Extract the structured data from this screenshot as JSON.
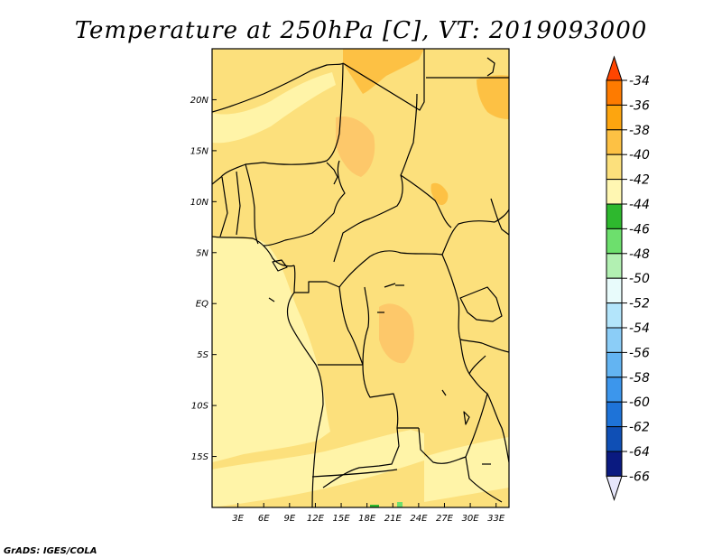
{
  "chart_data": {
    "type": "heatmap",
    "title": "Temperature at 250hPa [C], VT: 2019093000",
    "xlabel": "",
    "ylabel": "",
    "xlim": [
      0,
      34.5
    ],
    "ylim": [
      -20,
      25
    ],
    "x_ticks": [
      "3E",
      "6E",
      "9E",
      "12E",
      "15E",
      "18E",
      "21E",
      "24E",
      "27E",
      "30E",
      "33E"
    ],
    "x_tick_values": [
      3,
      6,
      9,
      12,
      15,
      18,
      21,
      24,
      27,
      30,
      33
    ],
    "y_ticks": [
      "20N",
      "15N",
      "10N",
      "5N",
      "EQ",
      "5S",
      "10S",
      "15S"
    ],
    "y_tick_values": [
      20,
      15,
      10,
      5,
      0,
      -5,
      -10,
      -15
    ],
    "colorbar": {
      "labels": [
        "-34",
        "-36",
        "-38",
        "-40",
        "-42",
        "-44",
        "-46",
        "-48",
        "-50",
        "-52",
        "-54",
        "-56",
        "-58",
        "-60",
        "-62",
        "-64",
        "-66"
      ],
      "colors": [
        "#ff4500",
        "#fe7b00",
        "#fda50f",
        "#fdc144",
        "#fce07c",
        "#fff7b2",
        "#2eb82e",
        "#6ddf6d",
        "#b2f0b2",
        "#e8fbfb",
        "#b3e5fb",
        "#8bcdf7",
        "#63b4f2",
        "#3c96ec",
        "#1e73d8",
        "#0f4fb5",
        "#0a1a80",
        "#e6e6fa"
      ]
    },
    "regions": [
      {
        "level": "-42 to -40",
        "description": "broad band over Sahel, Congo basin and East Africa"
      },
      {
        "level": "-40 to -38",
        "description": "small patches over southern Libya/Egypt and Chad"
      },
      {
        "level": "-44 to -42",
        "description": "Atlantic Ocean and southern Angola/Namibia"
      },
      {
        "level": "-46 to -44",
        "description": "tiny patch near 22E 20S"
      }
    ],
    "credit": "GrADS: IGES/COLA"
  }
}
